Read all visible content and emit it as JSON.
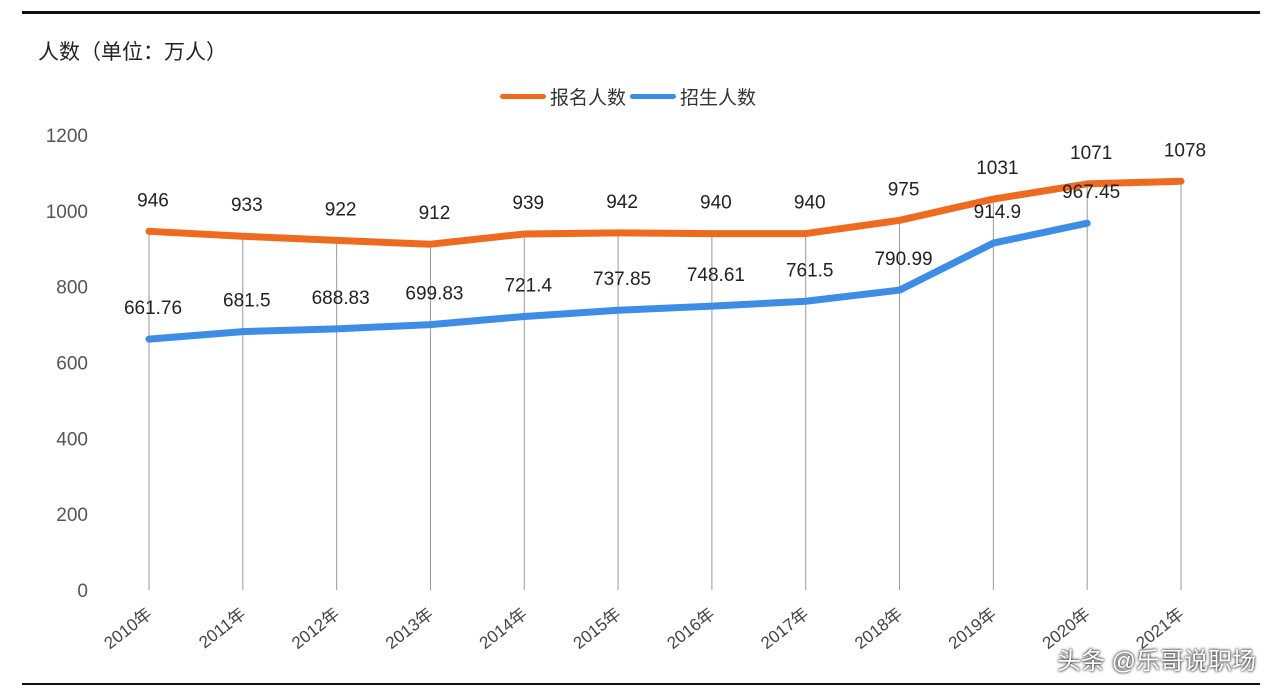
{
  "chart_data": {
    "type": "line",
    "title": "",
    "ylabel": "人数（单位：万人）",
    "xlabel": "",
    "categories": [
      "2010年",
      "2011年",
      "2012年",
      "2013年",
      "2014年",
      "2015年",
      "2016年",
      "2017年",
      "2018年",
      "2019年",
      "2020年",
      "2021年"
    ],
    "ylim": [
      0,
      1200
    ],
    "yticks": [
      0,
      200,
      400,
      600,
      800,
      1000,
      1200
    ],
    "grid": "vertical drop lines at each category",
    "legend_position": "top",
    "series": [
      {
        "name": "报名人数",
        "color": "#ee6a1f",
        "values": [
          946,
          933,
          922,
          912,
          939,
          942,
          940,
          940,
          975,
          1031,
          1071,
          1078
        ],
        "labels": [
          "946",
          "933",
          "922",
          "912",
          "939",
          "942",
          "940",
          "940",
          "975",
          "1031",
          "1071",
          "1078"
        ]
      },
      {
        "name": "招生人数",
        "color": "#3d8de6",
        "values": [
          661.76,
          681.5,
          688.83,
          699.83,
          721.4,
          737.85,
          748.61,
          761.5,
          790.99,
          914.9,
          967.45,
          null
        ],
        "labels": [
          "661.76",
          "681.5",
          "688.83",
          "699.83",
          "721.4",
          "737.85",
          "748.61",
          "761.5",
          "790.99",
          "914.9",
          "967.45",
          null
        ]
      }
    ]
  },
  "watermark": "头条 @乐哥说职场"
}
